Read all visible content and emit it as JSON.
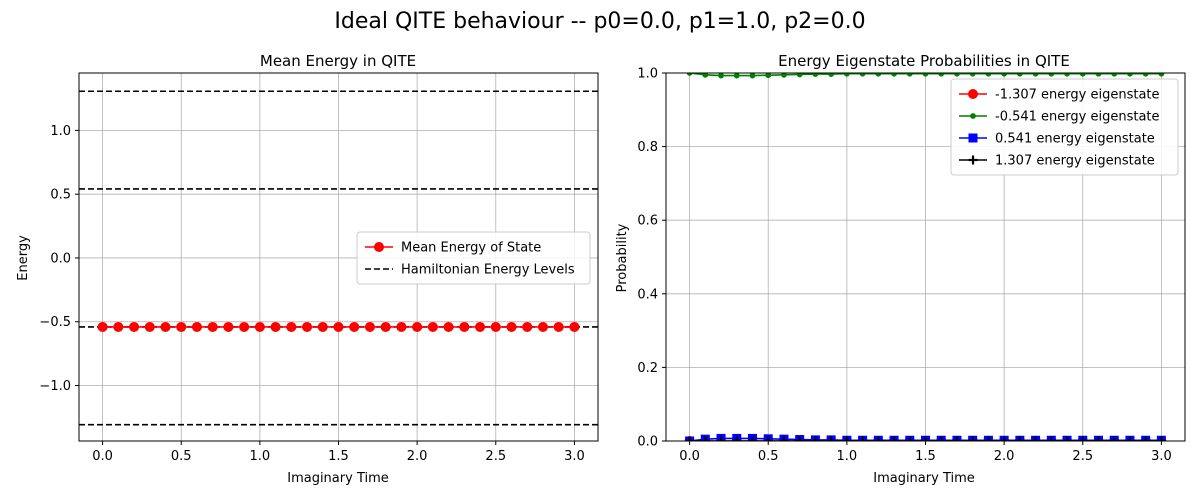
{
  "figure": {
    "suptitle": "Ideal QITE behaviour -- p0=0.0, p1=1.0, p2=0.0"
  },
  "chart_data": [
    {
      "type": "line",
      "title": "Mean Energy in QITE",
      "xlabel": "Imaginary Time",
      "ylabel": "Energy",
      "xlim": [
        -0.15,
        3.15
      ],
      "ylim": [
        -1.435,
        1.45
      ],
      "xticks": [
        0.0,
        0.5,
        1.0,
        1.5,
        2.0,
        2.5,
        3.0
      ],
      "xtick_labels": [
        "0.0",
        "0.5",
        "1.0",
        "1.5",
        "2.0",
        "2.5",
        "3.0"
      ],
      "yticks": [
        -1.0,
        -0.5,
        0.0,
        0.5,
        1.0
      ],
      "ytick_labels": [
        "−1.0",
        "−0.5",
        "0.0",
        "0.5",
        "1.0"
      ],
      "grid": true,
      "legend_position": "center-right",
      "x": [
        0.0,
        0.1,
        0.2,
        0.3,
        0.4,
        0.5,
        0.6,
        0.7,
        0.8,
        0.9,
        1.0,
        1.1,
        1.2,
        1.3,
        1.4,
        1.5,
        1.6,
        1.7,
        1.8,
        1.9,
        2.0,
        2.1,
        2.2,
        2.3,
        2.4,
        2.5,
        2.6,
        2.7,
        2.8,
        2.9,
        3.0
      ],
      "series": [
        {
          "name": "Mean Energy of State",
          "color": "#ff0000",
          "marker": "circle",
          "values": [
            -0.541,
            -0.541,
            -0.541,
            -0.541,
            -0.541,
            -0.541,
            -0.541,
            -0.541,
            -0.541,
            -0.541,
            -0.541,
            -0.541,
            -0.541,
            -0.541,
            -0.541,
            -0.541,
            -0.541,
            -0.541,
            -0.541,
            -0.541,
            -0.541,
            -0.541,
            -0.541,
            -0.541,
            -0.541,
            -0.541,
            -0.541,
            -0.541,
            -0.541,
            -0.541,
            -0.541
          ]
        }
      ],
      "hlines": {
        "name": "Hamiltonian Energy Levels",
        "color": "#000000",
        "style": "dashed",
        "values": [
          -1.307,
          -0.541,
          0.541,
          1.307
        ]
      }
    },
    {
      "type": "line",
      "title": "Energy Eigenstate Probabilities in QITE",
      "xlabel": "Imaginary Time",
      "ylabel": "Probability",
      "xlim": [
        -0.15,
        3.15
      ],
      "ylim": [
        0.0,
        1.0
      ],
      "xticks": [
        0.0,
        0.5,
        1.0,
        1.5,
        2.0,
        2.5,
        3.0
      ],
      "xtick_labels": [
        "0.0",
        "0.5",
        "1.0",
        "1.5",
        "2.0",
        "2.5",
        "3.0"
      ],
      "yticks": [
        0.0,
        0.2,
        0.4,
        0.6,
        0.8,
        1.0
      ],
      "ytick_labels": [
        "0.0",
        "0.2",
        "0.4",
        "0.6",
        "0.8",
        "1.0"
      ],
      "grid": true,
      "legend_position": "top-right",
      "x": [
        0.0,
        0.1,
        0.2,
        0.3,
        0.4,
        0.5,
        0.6,
        0.7,
        0.8,
        0.9,
        1.0,
        1.1,
        1.2,
        1.3,
        1.4,
        1.5,
        1.6,
        1.7,
        1.8,
        1.9,
        2.0,
        2.1,
        2.2,
        2.3,
        2.4,
        2.5,
        2.6,
        2.7,
        2.8,
        2.9,
        3.0
      ],
      "series": [
        {
          "name": "-1.307 energy eigenstate",
          "color": "#ff0000",
          "marker": "circle",
          "values": [
            0,
            0,
            0,
            0,
            0,
            0,
            0,
            0,
            0,
            0,
            0,
            0,
            0,
            0,
            0,
            0,
            0,
            0,
            0,
            0,
            0,
            0,
            0,
            0,
            0,
            0,
            0,
            0,
            0,
            0,
            0
          ]
        },
        {
          "name": "-0.541 energy eigenstate",
          "color": "#008000",
          "marker": "point",
          "values": [
            1.0,
            0.995,
            0.993,
            0.993,
            0.993,
            0.994,
            0.995,
            0.996,
            0.997,
            0.997,
            0.998,
            0.998,
            0.998,
            0.998,
            0.998,
            0.998,
            0.998,
            0.998,
            0.998,
            0.998,
            0.998,
            0.998,
            0.998,
            0.998,
            0.998,
            0.998,
            0.998,
            0.998,
            0.998,
            0.998,
            0.998
          ]
        },
        {
          "name": "0.541 energy eigenstate",
          "color": "#0000ff",
          "marker": "square",
          "values": [
            0.0,
            0.005,
            0.007,
            0.007,
            0.007,
            0.006,
            0.005,
            0.004,
            0.003,
            0.003,
            0.002,
            0.002,
            0.002,
            0.002,
            0.002,
            0.002,
            0.002,
            0.002,
            0.002,
            0.002,
            0.002,
            0.002,
            0.002,
            0.002,
            0.002,
            0.002,
            0.002,
            0.002,
            0.002,
            0.002,
            0.002
          ]
        },
        {
          "name": "1.307 energy eigenstate",
          "color": "#000000",
          "marker": "plus",
          "values": [
            0,
            0,
            0,
            0,
            0,
            0,
            0,
            0,
            0,
            0,
            0,
            0,
            0,
            0,
            0,
            0,
            0,
            0,
            0,
            0,
            0,
            0,
            0,
            0,
            0,
            0,
            0,
            0,
            0,
            0,
            0
          ]
        }
      ]
    }
  ]
}
